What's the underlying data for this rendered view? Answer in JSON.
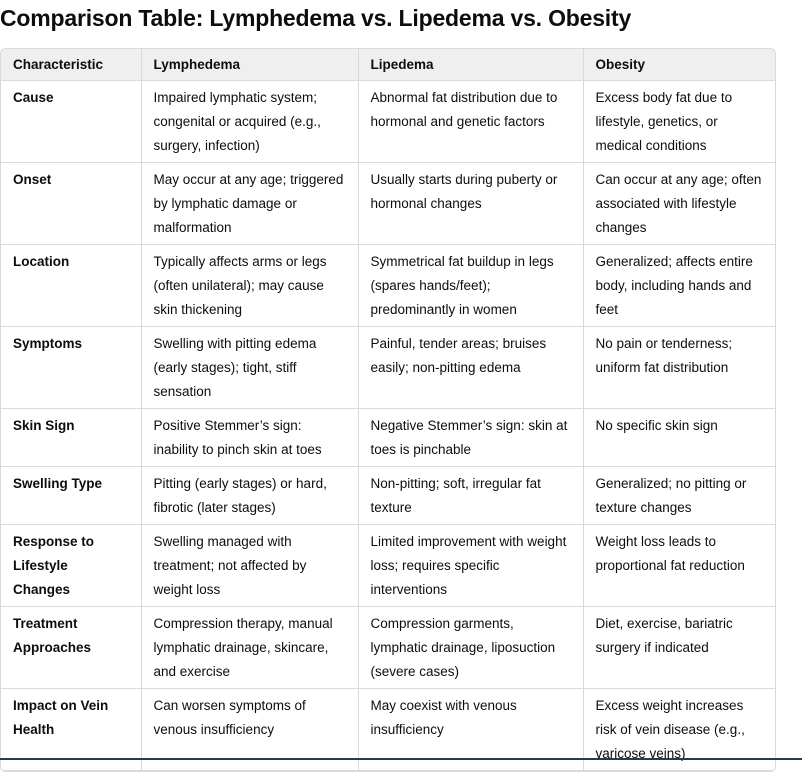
{
  "header": {
    "title": "Comparison Table: Lymphedema vs. Lipedema vs. Obesity"
  },
  "table": {
    "columns": [
      "Characteristic",
      "Lymphedema",
      "Lipedema",
      "Obesity"
    ],
    "rows": [
      [
        "Cause",
        "Impaired lymphatic system; congenital or acquired (e.g., surgery, infection)",
        "Abnormal fat distribution due to hormonal and genetic factors",
        "Excess body fat due to lifestyle, genetics, or medical conditions"
      ],
      [
        "Onset",
        "May occur at any age; triggered by lymphatic damage or malformation",
        "Usually starts during puberty or hormonal changes",
        "Can occur at any age; often associated with lifestyle changes"
      ],
      [
        "Location",
        "Typically affects arms or legs (often unilateral); may cause skin thickening",
        "Symmetrical fat buildup in legs (spares hands/feet); predominantly in women",
        "Generalized; affects entire body, including hands and feet"
      ],
      [
        "Symptoms",
        "Swelling with pitting edema (early stages); tight, stiff sensation",
        "Painful, tender areas; bruises easily; non-pitting edema",
        "No pain or tenderness; uniform fat distribution"
      ],
      [
        "Skin Sign",
        "Positive Stemmer’s sign: inability to pinch skin at toes",
        "Negative Stemmer’s sign: skin at toes is pinchable",
        "No specific skin sign"
      ],
      [
        "Swelling Type",
        "Pitting (early stages) or hard, fibrotic (later stages)",
        "Non-pitting; soft, irregular fat texture",
        "Generalized; no pitting or texture changes"
      ],
      [
        "Response to Lifestyle Changes",
        "Swelling managed with treatment; not affected by weight loss",
        "Limited improvement with weight loss; requires specific interventions",
        "Weight loss leads to proportional fat reduction"
      ],
      [
        "Treatment Approaches",
        "Compression therapy, manual lymphatic drainage, skincare, and exercise",
        "Compression garments, lymphatic drainage, liposuction (severe cases)",
        "Diet, exercise, bariatric surgery if indicated"
      ],
      [
        "Impact on Vein Health",
        "Can worsen symptoms of venous insufficiency",
        "May coexist with venous insufficiency",
        "Excess weight increases risk of vein disease (e.g., varicose veins)"
      ]
    ]
  }
}
